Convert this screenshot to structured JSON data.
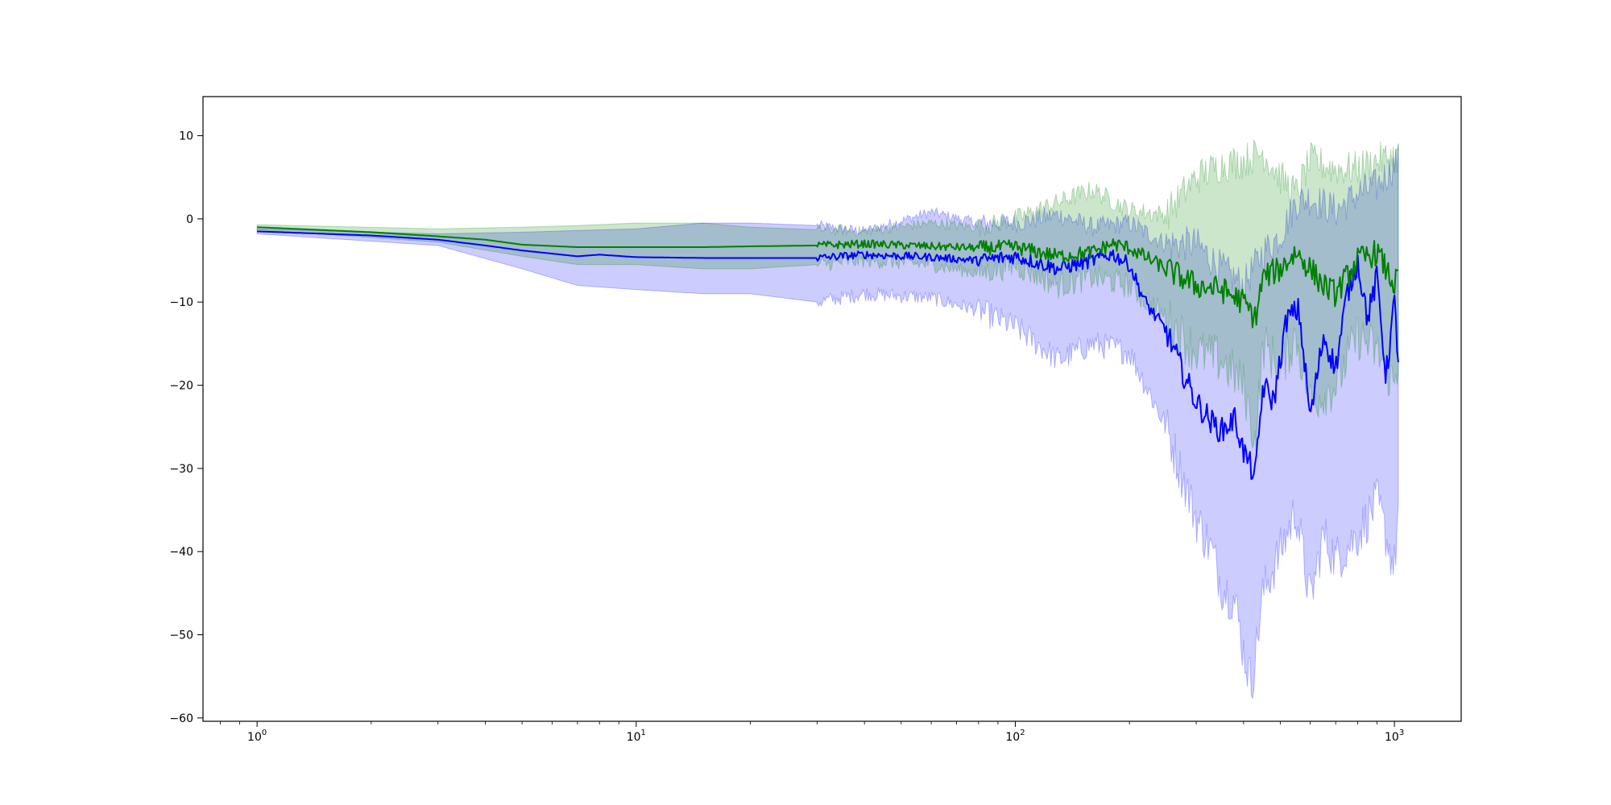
{
  "chart_data": {
    "type": "line",
    "title": "",
    "xlabel": "",
    "ylabel": "",
    "x_scale": "log",
    "xlim": [
      0.72,
      1500
    ],
    "ylim": [
      -60.4,
      14.7
    ],
    "grid": false,
    "x_ticks": [
      {
        "base": "10",
        "exp": "0"
      },
      {
        "base": "10",
        "exp": "1"
      },
      {
        "base": "10",
        "exp": "2"
      },
      {
        "base": "10",
        "exp": "3"
      }
    ],
    "y_ticks": [
      "10",
      "0",
      "−10",
      "−20",
      "−30",
      "−40",
      "−50",
      "−60"
    ],
    "series": [
      {
        "color": "#0000ff",
        "band_color": "#0000ff",
        "band_opacity": 0.2,
        "line": [
          [
            1,
            -1.5
          ],
          [
            2,
            -2.0
          ],
          [
            3,
            -2.5
          ],
          [
            4,
            -3.2
          ],
          [
            5,
            -3.8
          ],
          [
            7,
            -4.5
          ],
          [
            8,
            -4.3
          ],
          [
            10,
            -4.6
          ],
          [
            15,
            -4.7
          ],
          [
            20,
            -4.7
          ],
          [
            30,
            -4.7
          ],
          [
            40,
            -4.3
          ],
          [
            60,
            -4.6
          ],
          [
            80,
            -5.0
          ],
          [
            100,
            -4.5
          ],
          [
            130,
            -6.0
          ],
          [
            160,
            -5.0
          ],
          [
            180,
            -4.2
          ],
          [
            200,
            -5.5
          ],
          [
            220,
            -10.0
          ],
          [
            250,
            -13.5
          ],
          [
            280,
            -19.0
          ],
          [
            300,
            -22.0
          ],
          [
            330,
            -24.5
          ],
          [
            350,
            -25.5
          ],
          [
            380,
            -24.0
          ],
          [
            400,
            -28.0
          ],
          [
            430,
            -31.0
          ],
          [
            450,
            -20.0
          ],
          [
            480,
            -22.0
          ],
          [
            520,
            -12.0
          ],
          [
            560,
            -11.0
          ],
          [
            600,
            -24.0
          ],
          [
            650,
            -14.0
          ],
          [
            700,
            -18.0
          ],
          [
            750,
            -9.0
          ],
          [
            800,
            -5.0
          ],
          [
            850,
            -12.0
          ],
          [
            900,
            -7.0
          ],
          [
            950,
            -19.0
          ],
          [
            1000,
            -10.0
          ],
          [
            1024,
            -17.0
          ]
        ],
        "upper": [
          [
            1,
            -1.2
          ],
          [
            3,
            -1.8
          ],
          [
            5,
            -1.6
          ],
          [
            7,
            -1.4
          ],
          [
            10,
            -1.2
          ],
          [
            15,
            -0.5
          ],
          [
            20,
            -0.5
          ],
          [
            30,
            -0.8
          ],
          [
            40,
            -1.5
          ],
          [
            60,
            0.8
          ],
          [
            80,
            -0.5
          ],
          [
            100,
            -0.5
          ],
          [
            130,
            0.5
          ],
          [
            160,
            -1.0
          ],
          [
            200,
            -0.5
          ],
          [
            250,
            -3.0
          ],
          [
            300,
            -3.0
          ],
          [
            350,
            -6.0
          ],
          [
            400,
            -8.0
          ],
          [
            450,
            -4.0
          ],
          [
            500,
            -2.0
          ],
          [
            550,
            2.0
          ],
          [
            600,
            2.5
          ],
          [
            700,
            1.0
          ],
          [
            800,
            3.0
          ],
          [
            900,
            4.0
          ],
          [
            1000,
            6.5
          ],
          [
            1024,
            7.0
          ]
        ],
        "lower": [
          [
            1,
            -1.8
          ],
          [
            3,
            -3.2
          ],
          [
            5,
            -6.0
          ],
          [
            7,
            -8.0
          ],
          [
            10,
            -8.5
          ],
          [
            15,
            -9.0
          ],
          [
            20,
            -9.0
          ],
          [
            30,
            -10.0
          ],
          [
            40,
            -9.0
          ],
          [
            60,
            -9.5
          ],
          [
            80,
            -11.0
          ],
          [
            100,
            -13.0
          ],
          [
            130,
            -17.0
          ],
          [
            160,
            -15.0
          ],
          [
            200,
            -16.0
          ],
          [
            250,
            -25.0
          ],
          [
            300,
            -36.0
          ],
          [
            330,
            -40.0
          ],
          [
            350,
            -44.0
          ],
          [
            380,
            -46.0
          ],
          [
            400,
            -52.0
          ],
          [
            420,
            -56.0
          ],
          [
            450,
            -45.0
          ],
          [
            500,
            -40.0
          ],
          [
            550,
            -35.0
          ],
          [
            600,
            -46.0
          ],
          [
            650,
            -38.0
          ],
          [
            700,
            -41.0
          ],
          [
            800,
            -38.0
          ],
          [
            900,
            -34.0
          ],
          [
            1000,
            -42.0
          ],
          [
            1024,
            -35.0
          ]
        ]
      },
      {
        "color": "#008000",
        "band_color": "#008000",
        "band_opacity": 0.2,
        "line": [
          [
            1,
            -1.0
          ],
          [
            2,
            -1.6
          ],
          [
            3,
            -2.1
          ],
          [
            4,
            -2.5
          ],
          [
            5,
            -3.1
          ],
          [
            7,
            -3.4
          ],
          [
            10,
            -3.4
          ],
          [
            15,
            -3.4
          ],
          [
            20,
            -3.3
          ],
          [
            30,
            -3.2
          ],
          [
            40,
            -3.0
          ],
          [
            60,
            -3.3
          ],
          [
            80,
            -3.5
          ],
          [
            100,
            -3.4
          ],
          [
            130,
            -4.5
          ],
          [
            160,
            -4.0
          ],
          [
            180,
            -3.0
          ],
          [
            200,
            -3.5
          ],
          [
            250,
            -6.0
          ],
          [
            300,
            -8.0
          ],
          [
            350,
            -8.5
          ],
          [
            400,
            -10.0
          ],
          [
            430,
            -12.0
          ],
          [
            450,
            -7.0
          ],
          [
            500,
            -6.0
          ],
          [
            550,
            -4.0
          ],
          [
            600,
            -6.0
          ],
          [
            650,
            -8.0
          ],
          [
            700,
            -9.0
          ],
          [
            800,
            -5.0
          ],
          [
            900,
            -4.0
          ],
          [
            1000,
            -8.0
          ],
          [
            1024,
            -7.0
          ]
        ],
        "upper": [
          [
            1,
            -0.7
          ],
          [
            3,
            -1.2
          ],
          [
            5,
            -1.0
          ],
          [
            7,
            -0.8
          ],
          [
            10,
            -0.5
          ],
          [
            15,
            -0.5
          ],
          [
            20,
            -1.0
          ],
          [
            30,
            -1.3
          ],
          [
            40,
            -1.5
          ],
          [
            60,
            -0.5
          ],
          [
            80,
            -1.0
          ],
          [
            100,
            0.0
          ],
          [
            130,
            2.0
          ],
          [
            160,
            3.5
          ],
          [
            200,
            1.0
          ],
          [
            250,
            0.5
          ],
          [
            300,
            5.0
          ],
          [
            350,
            6.5
          ],
          [
            400,
            7.0
          ],
          [
            450,
            8.0
          ],
          [
            500,
            5.0
          ],
          [
            550,
            3.0
          ],
          [
            600,
            7.0
          ],
          [
            700,
            6.0
          ],
          [
            800,
            6.0
          ],
          [
            900,
            7.0
          ],
          [
            1000,
            7.5
          ],
          [
            1024,
            7.5
          ]
        ],
        "lower": [
          [
            1,
            -1.3
          ],
          [
            3,
            -2.8
          ],
          [
            5,
            -4.5
          ],
          [
            7,
            -5.5
          ],
          [
            10,
            -5.5
          ],
          [
            15,
            -6.0
          ],
          [
            20,
            -6.0
          ],
          [
            30,
            -5.5
          ],
          [
            40,
            -5.0
          ],
          [
            60,
            -5.5
          ],
          [
            80,
            -6.5
          ],
          [
            100,
            -5.5
          ],
          [
            130,
            -8.0
          ],
          [
            160,
            -7.0
          ],
          [
            200,
            -8.0
          ],
          [
            250,
            -12.0
          ],
          [
            300,
            -16.0
          ],
          [
            350,
            -17.0
          ],
          [
            400,
            -20.0
          ],
          [
            430,
            -27.0
          ],
          [
            450,
            -15.0
          ],
          [
            500,
            -18.0
          ],
          [
            550,
            -14.0
          ],
          [
            600,
            -22.0
          ],
          [
            700,
            -20.0
          ],
          [
            800,
            -14.0
          ],
          [
            900,
            -16.0
          ],
          [
            1000,
            -20.0
          ],
          [
            1024,
            -17.0
          ]
        ]
      }
    ]
  }
}
